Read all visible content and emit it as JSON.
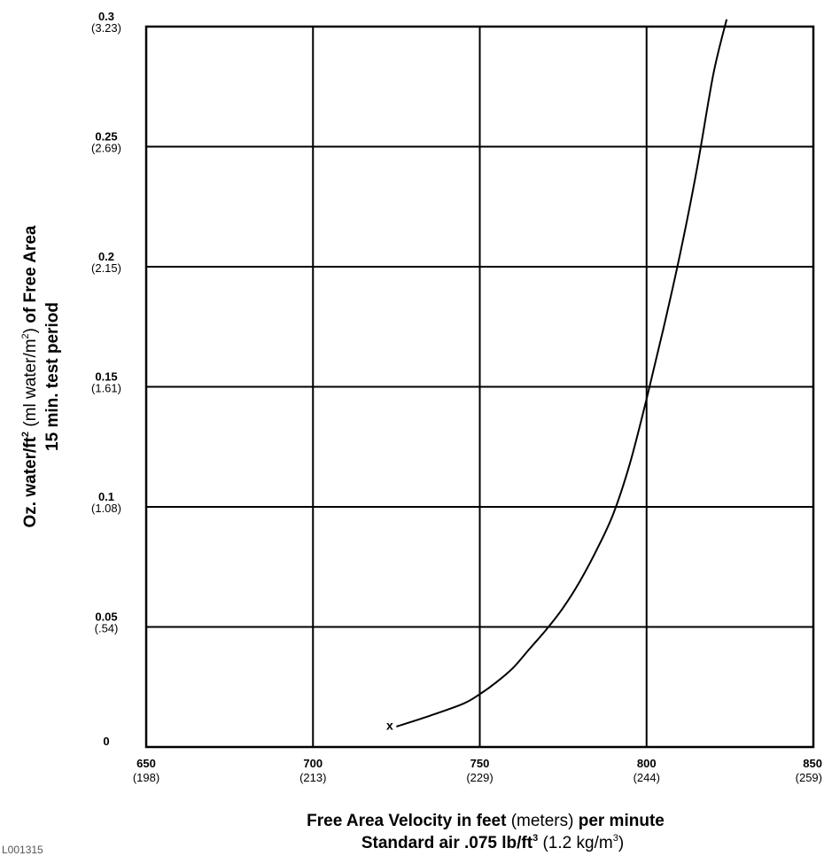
{
  "chart_data": {
    "type": "line",
    "x_ticks": [
      {
        "value": 650,
        "label": "650",
        "sublabel": "(198)"
      },
      {
        "value": 700,
        "label": "700",
        "sublabel": "(213)"
      },
      {
        "value": 750,
        "label": "750",
        "sublabel": "(229)"
      },
      {
        "value": 800,
        "label": "800",
        "sublabel": "(244)"
      },
      {
        "value": 850,
        "label": "850",
        "sublabel": "(259)"
      }
    ],
    "y_ticks": [
      {
        "value": 0,
        "label": "0",
        "sublabel": ""
      },
      {
        "value": 0.05,
        "label": "0.05",
        "sublabel": "(.54)"
      },
      {
        "value": 0.1,
        "label": "0.1",
        "sublabel": "(1.08)"
      },
      {
        "value": 0.15,
        "label": "0.15",
        "sublabel": "(1.61)"
      },
      {
        "value": 0.2,
        "label": "0.2",
        "sublabel": "(2.15)"
      },
      {
        "value": 0.25,
        "label": "0.25",
        "sublabel": "(2.69)"
      },
      {
        "value": 0.3,
        "label": "0.3",
        "sublabel": "(3.23)"
      }
    ],
    "xlim": [
      650,
      850
    ],
    "ylim": [
      0,
      0.3
    ],
    "grid": true,
    "xlabel": {
      "line1_bold": "Free Area Velocity in feet ",
      "line1_paren": "(meters)",
      "line1_rest": " per minute",
      "line2_bold": "Standard air .075 lb/ft",
      "line2_sup": "3",
      "line2_paren": " (1.2 kg/m",
      "line2_paren_sup": "3",
      "line2_close": ")"
    },
    "ylabel": {
      "line1_bold_a": "Oz. water/ft",
      "line1_sup_a": "2",
      "line1_paren": " (ml water/m",
      "line1_sup_b": "2",
      "line1_paren_close": ")",
      "line1_bold_b": " of Free Area",
      "line2": "15 min. test period"
    },
    "marker": {
      "x": 723,
      "y": 0.009,
      "label": "x"
    },
    "series": [
      {
        "x": [
          725,
          735,
          745,
          750,
          755,
          760,
          765,
          770,
          775,
          780,
          785,
          790,
          795,
          800,
          805,
          810,
          815,
          820,
          824
        ],
        "y": [
          0.0085,
          0.013,
          0.018,
          0.022,
          0.027,
          0.033,
          0.041,
          0.049,
          0.058,
          0.069,
          0.082,
          0.097,
          0.118,
          0.145,
          0.174,
          0.205,
          0.24,
          0.28,
          0.303
        ]
      }
    ]
  },
  "corner_text": "L001315"
}
